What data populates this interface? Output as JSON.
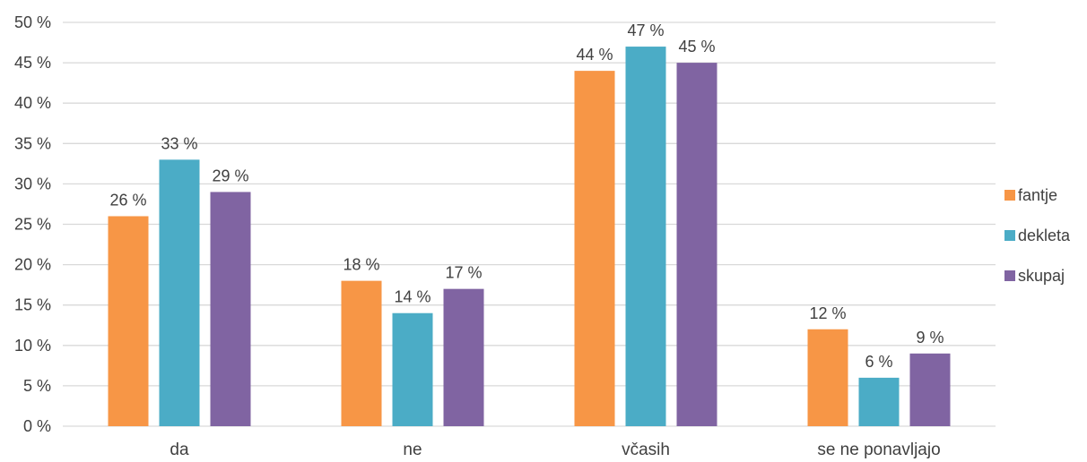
{
  "chart_data": {
    "type": "bar",
    "categories": [
      "da",
      "ne",
      "včasih",
      "se ne ponavljajo"
    ],
    "series": [
      {
        "name": "fantje",
        "values": [
          26,
          18,
          44,
          12
        ],
        "color": "#F79646"
      },
      {
        "name": "dekleta",
        "values": [
          33,
          14,
          47,
          6
        ],
        "color": "#4BACC6"
      },
      {
        "name": "skupaj",
        "values": [
          29,
          17,
          45,
          9
        ],
        "color": "#8064A2"
      }
    ],
    "ylim": [
      0,
      50
    ],
    "y_ticks": [
      0,
      5,
      10,
      15,
      20,
      25,
      30,
      35,
      40,
      45,
      50
    ],
    "value_suffix": " %",
    "grid": true,
    "gridline_color": "#D9D9D9",
    "legend": "right",
    "title": "",
    "xlabel": "",
    "ylabel": ""
  }
}
